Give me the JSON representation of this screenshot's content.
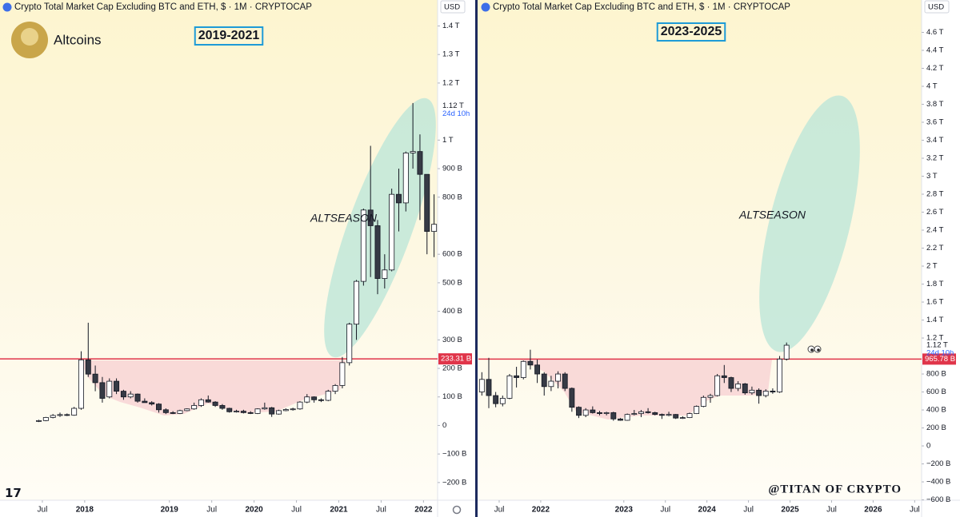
{
  "profile": {
    "name": "Altcoins"
  },
  "watermark": "@TITAN OF CRYPTO",
  "chart_data": [
    {
      "type": "candlestick",
      "title": "Crypto Total Market Cap Excluding BTC and ETH, $ · 1M · CRYPTOCAP",
      "currency": "USD",
      "range_label": "2019-2021",
      "annotation": "ALTSEASON",
      "up_color": "#ffffff",
      "down_color": "#363a45",
      "outline_color": "#131722",
      "x": [
        "2017-06",
        "2017-07",
        "2017-08",
        "2017-09",
        "2017-10",
        "2017-11",
        "2017-12",
        "2018-01",
        "2018-02",
        "2018-03",
        "2018-04",
        "2018-05",
        "2018-06",
        "2018-07",
        "2018-08",
        "2018-09",
        "2018-10",
        "2018-11",
        "2018-12",
        "2019-01",
        "2019-02",
        "2019-03",
        "2019-04",
        "2019-05",
        "2019-06",
        "2019-07",
        "2019-08",
        "2019-09",
        "2019-10",
        "2019-11",
        "2019-12",
        "2020-01",
        "2020-02",
        "2020-03",
        "2020-04",
        "2020-05",
        "2020-06",
        "2020-07",
        "2020-08",
        "2020-09",
        "2020-10",
        "2020-11",
        "2020-12",
        "2021-01",
        "2021-02",
        "2021-03",
        "2021-04",
        "2021-05",
        "2021-06",
        "2021-07",
        "2021-08",
        "2021-09",
        "2021-10",
        "2021-11",
        "2021-12",
        "2022-01",
        "2022-02"
      ],
      "open": [
        15,
        17,
        28,
        35,
        38,
        36,
        60,
        230,
        180,
        150,
        100,
        155,
        120,
        100,
        110,
        85,
        80,
        75,
        55,
        45,
        42,
        52,
        58,
        70,
        90,
        82,
        70,
        60,
        48,
        50,
        45,
        42,
        58,
        62,
        40,
        52,
        56,
        58,
        82,
        100,
        90,
        88,
        120,
        140,
        220,
        355,
        505,
        755,
        700,
        515,
        545,
        810,
        780,
        955,
        960,
        880,
        680
      ],
      "high": [
        20,
        30,
        40,
        45,
        42,
        65,
        260,
        360,
        210,
        170,
        165,
        165,
        125,
        120,
        112,
        95,
        85,
        78,
        60,
        50,
        55,
        60,
        80,
        95,
        105,
        85,
        75,
        62,
        55,
        55,
        50,
        60,
        80,
        65,
        55,
        60,
        62,
        85,
        110,
        102,
        95,
        125,
        145,
        240,
        360,
        510,
        760,
        980,
        720,
        600,
        830,
        900,
        960,
        1130,
        1020,
        880,
        810
      ],
      "low": [
        12,
        15,
        25,
        30,
        33,
        34,
        55,
        170,
        120,
        80,
        95,
        110,
        90,
        95,
        80,
        80,
        70,
        45,
        40,
        40,
        40,
        50,
        55,
        65,
        80,
        65,
        55,
        45,
        45,
        42,
        40,
        40,
        55,
        30,
        38,
        50,
        52,
        55,
        78,
        80,
        82,
        85,
        110,
        130,
        210,
        300,
        490,
        520,
        460,
        480,
        540,
        680,
        750,
        900,
        720,
        600,
        590
      ],
      "close": [
        17,
        28,
        35,
        38,
        36,
        60,
        230,
        180,
        150,
        95,
        155,
        120,
        100,
        110,
        85,
        80,
        75,
        55,
        45,
        42,
        52,
        58,
        70,
        90,
        82,
        70,
        60,
        48,
        50,
        45,
        42,
        58,
        62,
        40,
        52,
        56,
        58,
        82,
        100,
        90,
        88,
        120,
        140,
        220,
        355,
        505,
        755,
        700,
        515,
        545,
        810,
        780,
        955,
        960,
        880,
        680,
        705
      ],
      "xlim": [
        "2017-01",
        "2022-03"
      ],
      "xticks": [
        {
          "value": "2017-07",
          "label": "Jul"
        },
        {
          "value": "2018-01",
          "label": "2018"
        },
        {
          "value": "2019-01",
          "label": "2019"
        },
        {
          "value": "2019-07",
          "label": "Jul"
        },
        {
          "value": "2020-01",
          "label": "2020"
        },
        {
          "value": "2020-07",
          "label": "Jul"
        },
        {
          "value": "2021-01",
          "label": "2021"
        },
        {
          "value": "2021-07",
          "label": "Jul"
        },
        {
          "value": "2022-01",
          "label": "2022"
        }
      ],
      "ylim": [
        -262,
        1491
      ],
      "yticks": [
        {
          "value": 1400,
          "label": "1.4 T"
        },
        {
          "value": 1300,
          "label": "1.3 T"
        },
        {
          "value": 1200,
          "label": "1.2 T"
        },
        {
          "value": 1000,
          "label": "1 T"
        },
        {
          "value": 900,
          "label": "900 B"
        },
        {
          "value": 800,
          "label": "800 B"
        },
        {
          "value": 600,
          "label": "600 B"
        },
        {
          "value": 500,
          "label": "500 B"
        },
        {
          "value": 400,
          "label": "400 B"
        },
        {
          "value": 300,
          "label": "300 B"
        },
        {
          "value": 200,
          "label": "200 B"
        },
        {
          "value": 100,
          "label": "100 B"
        },
        0,
        {
          "value": -100,
          "label": "−100 B"
        },
        {
          "value": -200,
          "label": "−200 B"
        }
      ],
      "hline": {
        "value": 233.31,
        "label": "233.31 B",
        "color": "#e0354a"
      },
      "last_price": {
        "value": 1120,
        "label": "1.12 T",
        "countdown": "24d 10h"
      },
      "grid": false
    },
    {
      "type": "candlestick",
      "title": "Crypto Total Market Cap Excluding BTC and ETH, $ · 1M · CRYPTOCAP",
      "currency": "USD",
      "range_label": "2023-2025",
      "annotation": "ALTSEASON",
      "up_color": "#ffffff",
      "down_color": "#363a45",
      "outline_color": "#131722",
      "x": [
        "2021-04",
        "2021-05",
        "2021-06",
        "2021-07",
        "2021-08",
        "2021-09",
        "2021-10",
        "2021-11",
        "2021-12",
        "2022-01",
        "2022-02",
        "2022-03",
        "2022-04",
        "2022-05",
        "2022-06",
        "2022-07",
        "2022-08",
        "2022-09",
        "2022-10",
        "2022-11",
        "2022-12",
        "2023-01",
        "2023-02",
        "2023-03",
        "2023-04",
        "2023-05",
        "2023-06",
        "2023-07",
        "2023-08",
        "2023-09",
        "2023-10",
        "2023-11",
        "2023-12",
        "2024-01",
        "2024-02",
        "2024-03",
        "2024-04",
        "2024-05",
        "2024-06",
        "2024-07",
        "2024-08",
        "2024-09",
        "2024-10",
        "2024-11",
        "2024-12"
      ],
      "open": [
        600,
        740,
        560,
        470,
        530,
        780,
        760,
        940,
        900,
        800,
        660,
        720,
        800,
        640,
        430,
        340,
        400,
        370,
        360,
        370,
        300,
        285,
        350,
        360,
        380,
        370,
        350,
        340,
        350,
        310,
        315,
        360,
        440,
        540,
        560,
        780,
        760,
        640,
        690,
        590,
        620,
        560,
        610,
        600,
        966
      ],
      "high": [
        820,
        980,
        600,
        560,
        800,
        880,
        950,
        1070,
        960,
        820,
        780,
        830,
        820,
        650,
        440,
        420,
        440,
        390,
        380,
        380,
        310,
        360,
        400,
        400,
        420,
        380,
        360,
        380,
        355,
        330,
        370,
        450,
        560,
        580,
        800,
        900,
        770,
        720,
        700,
        660,
        640,
        630,
        640,
        1000,
        1150
      ],
      "low": [
        560,
        420,
        430,
        440,
        520,
        650,
        740,
        850,
        700,
        560,
        610,
        640,
        610,
        380,
        310,
        320,
        360,
        340,
        340,
        280,
        280,
        280,
        340,
        320,
        360,
        340,
        300,
        330,
        300,
        300,
        310,
        355,
        430,
        480,
        550,
        700,
        600,
        610,
        570,
        570,
        470,
        540,
        580,
        590,
        950
      ],
      "close": [
        740,
        560,
        470,
        530,
        780,
        760,
        940,
        900,
        800,
        660,
        720,
        800,
        640,
        430,
        340,
        400,
        370,
        360,
        370,
        300,
        285,
        350,
        360,
        380,
        370,
        350,
        340,
        350,
        310,
        315,
        360,
        440,
        540,
        560,
        780,
        760,
        640,
        690,
        590,
        620,
        560,
        610,
        600,
        966,
        1120
      ],
      "xlim": [
        "2021-04",
        "2026-08"
      ],
      "xticks": [
        {
          "value": "2021-07",
          "label": "Jul"
        },
        {
          "value": "2022-01",
          "label": "2022"
        },
        {
          "value": "2023-01",
          "label": "2023"
        },
        {
          "value": "2023-07",
          "label": "Jul"
        },
        {
          "value": "2024-01",
          "label": "2024"
        },
        {
          "value": "2024-07",
          "label": "Jul"
        },
        {
          "value": "2025-01",
          "label": "2025"
        },
        {
          "value": "2025-07",
          "label": "Jul"
        },
        {
          "value": "2026-01",
          "label": "2026"
        },
        {
          "value": "2026-07",
          "label": "Jul"
        }
      ],
      "ylim": [
        -604,
        4960
      ],
      "yticks": [
        {
          "value": 4600,
          "label": "4.6 T"
        },
        {
          "value": 4400,
          "label": "4.4 T"
        },
        {
          "value": 4200,
          "label": "4.2 T"
        },
        {
          "value": 4000,
          "label": "4 T"
        },
        {
          "value": 3800,
          "label": "3.8 T"
        },
        {
          "value": 3600,
          "label": "3.6 T"
        },
        {
          "value": 3400,
          "label": "3.4 T"
        },
        {
          "value": 3200,
          "label": "3.2 T"
        },
        {
          "value": 3000,
          "label": "3 T"
        },
        {
          "value": 2800,
          "label": "2.8 T"
        },
        {
          "value": 2600,
          "label": "2.6 T"
        },
        {
          "value": 2400,
          "label": "2.4 T"
        },
        {
          "value": 2200,
          "label": "2.2 T"
        },
        {
          "value": 2000,
          "label": "2 T"
        },
        {
          "value": 1800,
          "label": "1.8 T"
        },
        {
          "value": 1600,
          "label": "1.6 T"
        },
        {
          "value": 1400,
          "label": "1.4 T"
        },
        {
          "value": 1200,
          "label": "1.2 T"
        },
        {
          "value": 800,
          "label": "800 B"
        },
        {
          "value": 600,
          "label": "600 B"
        },
        {
          "value": 400,
          "label": "400 B"
        },
        {
          "value": 200,
          "label": "200 B"
        },
        0,
        {
          "value": -200,
          "label": "−200 B"
        },
        {
          "value": -400,
          "label": "−400 B"
        },
        {
          "value": -600,
          "label": "−600 B"
        }
      ],
      "hline": {
        "value": 965.78,
        "label": "965.78 B",
        "color": "#e0354a"
      },
      "last_price": {
        "value": 1120,
        "label": "1.12 T",
        "countdown": "24d 10h"
      },
      "grid": false
    }
  ]
}
